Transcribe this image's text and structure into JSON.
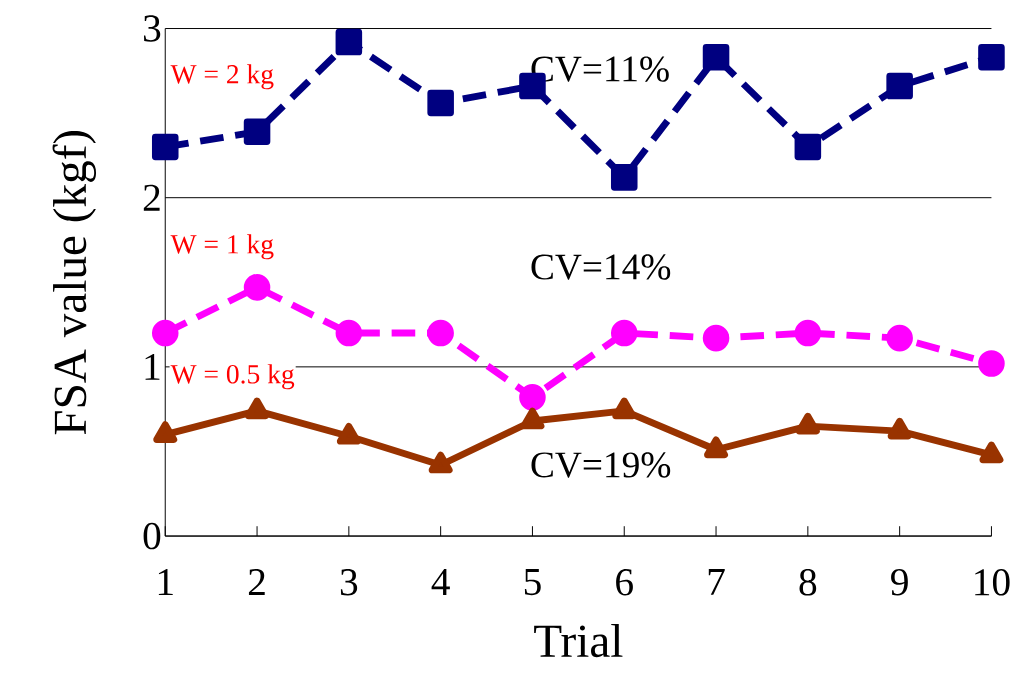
{
  "chart_data": {
    "type": "line",
    "xlabel": "Trial",
    "ylabel": "FSA value (kgf)",
    "x": [
      1,
      2,
      3,
      4,
      5,
      6,
      7,
      8,
      9,
      10
    ],
    "series": [
      {
        "color": "#000080",
        "marker": "square",
        "line_style": "dashed",
        "values": [
          2.3,
          2.39,
          2.92,
          2.56,
          2.66,
          2.12,
          2.83,
          2.3,
          2.66,
          2.83
        ]
      },
      {
        "color": "#ff00ff",
        "marker": "circle",
        "line_style": "dashed",
        "values": [
          1.2,
          1.47,
          1.2,
          1.2,
          0.82,
          1.2,
          1.17,
          1.2,
          1.17,
          1.02
        ]
      },
      {
        "color": "#993300",
        "marker": "triangle",
        "line_style": "solid",
        "values": [
          0.6,
          0.74,
          0.59,
          0.42,
          0.68,
          0.74,
          0.51,
          0.65,
          0.62,
          0.48
        ]
      }
    ],
    "annotations": [
      "W = 2 kg",
      "W = 1 kg",
      "W = 0.5 kg",
      "CV=11%",
      "CV=14%",
      "CV=19%"
    ],
    "xlim": [
      1,
      10
    ],
    "ylim": [
      0,
      3
    ],
    "xticks": [
      1,
      2,
      3,
      4,
      5,
      6,
      7,
      8,
      9,
      10
    ],
    "yticks": [
      0,
      1,
      2,
      3
    ],
    "grid": "y"
  }
}
